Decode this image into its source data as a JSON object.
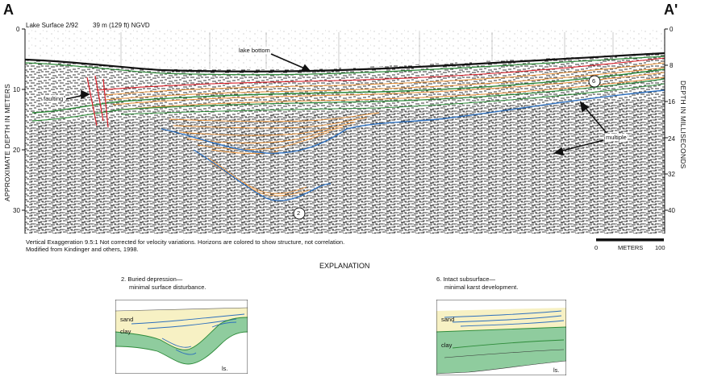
{
  "section": {
    "left_label": "A",
    "right_label": "A'"
  },
  "header": {
    "lake_surface": "Lake Surface 2/92",
    "elevation": "39 m (129 ft) NGVD"
  },
  "axes": {
    "left_title": "APPROXIMATE DEPTH IN METERS",
    "right_title": "DEPTH IN MILLISECONDS",
    "left_ticks": [
      "0",
      "10",
      "20",
      "30"
    ],
    "right_ticks": [
      "0",
      "8",
      "16",
      "24",
      "32",
      "40"
    ]
  },
  "annotations": {
    "lake_bottom": "lake bottom",
    "faulting": "faulting",
    "multiple": "multiple",
    "marker_6": "6",
    "marker_2": "2"
  },
  "footnotes": {
    "line1": "Vertical Exaggeration 9.5:1    Not corrected for velocity variations.    Horizons are colored to show structure, not correlation.",
    "line2": "Modified from Kindinger and others, 1998."
  },
  "scale": {
    "start": "0",
    "unit": "METERS",
    "end": "100"
  },
  "explanation": {
    "title": "EXPLANATION",
    "item2": {
      "caption_line1": "2. Buried depression—",
      "caption_line2": "minimal surface disturbance.",
      "sand": "sand",
      "clay": "clay",
      "ls": "ls."
    },
    "item6": {
      "caption_line1": "6. Intact subsurface—",
      "caption_line2": "minimal karst development.",
      "sand": "sand",
      "clay": "clay",
      "ls": "ls."
    }
  },
  "colors": {
    "horizon_orange": "#e8923a",
    "horizon_green": "#2e8b3a",
    "horizon_blue": "#2d6fbd",
    "fault_red": "#d8202a",
    "clay_fill": "#8fcc9e",
    "sand_fill": "#f7f1c4",
    "seismic": "#222222"
  }
}
